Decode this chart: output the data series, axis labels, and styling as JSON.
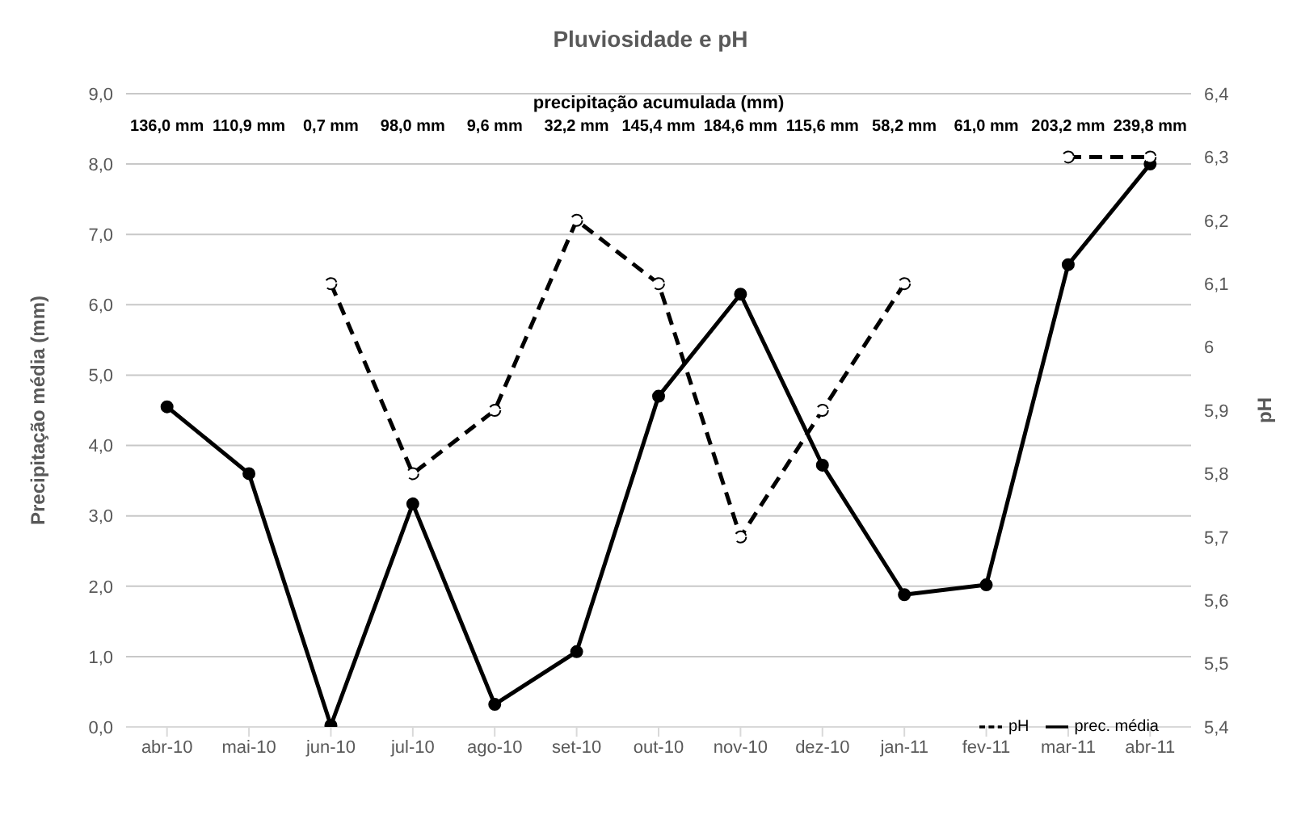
{
  "chart_data": {
    "type": "line",
    "title": "Pluviosidade e pH",
    "ylabel": "Precipitação média (mm)",
    "y2label": "pH",
    "categories": [
      "abr-10",
      "mai-10",
      "jun-10",
      "jul-10",
      "ago-10",
      "set-10",
      "out-10",
      "nov-10",
      "dez-10",
      "jan-11",
      "fev-11",
      "mar-11",
      "abr-11"
    ],
    "series": [
      {
        "name": "prec. média",
        "color": "#000000",
        "marker": "circle",
        "line_style": "solid",
        "values": [
          4.55,
          3.6,
          0.02,
          3.17,
          0.32,
          1.07,
          4.7,
          6.15,
          3.72,
          1.88,
          2.02,
          6.57,
          8.0
        ]
      },
      {
        "name": "pH",
        "color": "#000000",
        "marker": "circle",
        "line_style": "dashed",
        "axis": "y2",
        "values": [
          null,
          null,
          6.1,
          5.8,
          5.9,
          6.2,
          6.1,
          5.7,
          5.9,
          6.1,
          null,
          6.3,
          6.3
        ]
      }
    ],
    "ylim": [
      0,
      9
    ],
    "yticks": [
      {
        "value": 0,
        "label": "0,0"
      },
      {
        "value": 1,
        "label": "1,0"
      },
      {
        "value": 2,
        "label": "2,0"
      },
      {
        "value": 3,
        "label": "3,0"
      },
      {
        "value": 4,
        "label": "4,0"
      },
      {
        "value": 5,
        "label": "5,0"
      },
      {
        "value": 6,
        "label": "6,0"
      },
      {
        "value": 7,
        "label": "7,0"
      },
      {
        "value": 8,
        "label": "8,0"
      },
      {
        "value": 9,
        "label": "9,0"
      }
    ],
    "y2lim": [
      5.4,
      6.4
    ],
    "y2ticks": [
      {
        "value": 5.4,
        "label": "5,4"
      },
      {
        "value": 5.5,
        "label": "5,5"
      },
      {
        "value": 5.6,
        "label": "5,6"
      },
      {
        "value": 5.7,
        "label": "5,7"
      },
      {
        "value": 5.8,
        "label": "5,8"
      },
      {
        "value": 5.9,
        "label": "5,9"
      },
      6,
      {
        "value": 6.1,
        "label": "6,1"
      },
      {
        "value": 6.2,
        "label": "6,2"
      },
      {
        "value": 6.3,
        "label": "6,3"
      },
      {
        "value": 6.4,
        "label": "6,4"
      }
    ],
    "grid": "y",
    "legend": "bottom right",
    "annotations": [
      "precipitação acumulada (mm)",
      "136,0 mm",
      "110,9 mm",
      "0,7 mm",
      "98,0 mm",
      "9,6 mm",
      "32,2 mm",
      "145,4 mm",
      "184,6 mm",
      "115,6 mm",
      "58,2 mm",
      "61,0 mm",
      "203,2 mm",
      "239,8 mm"
    ]
  }
}
